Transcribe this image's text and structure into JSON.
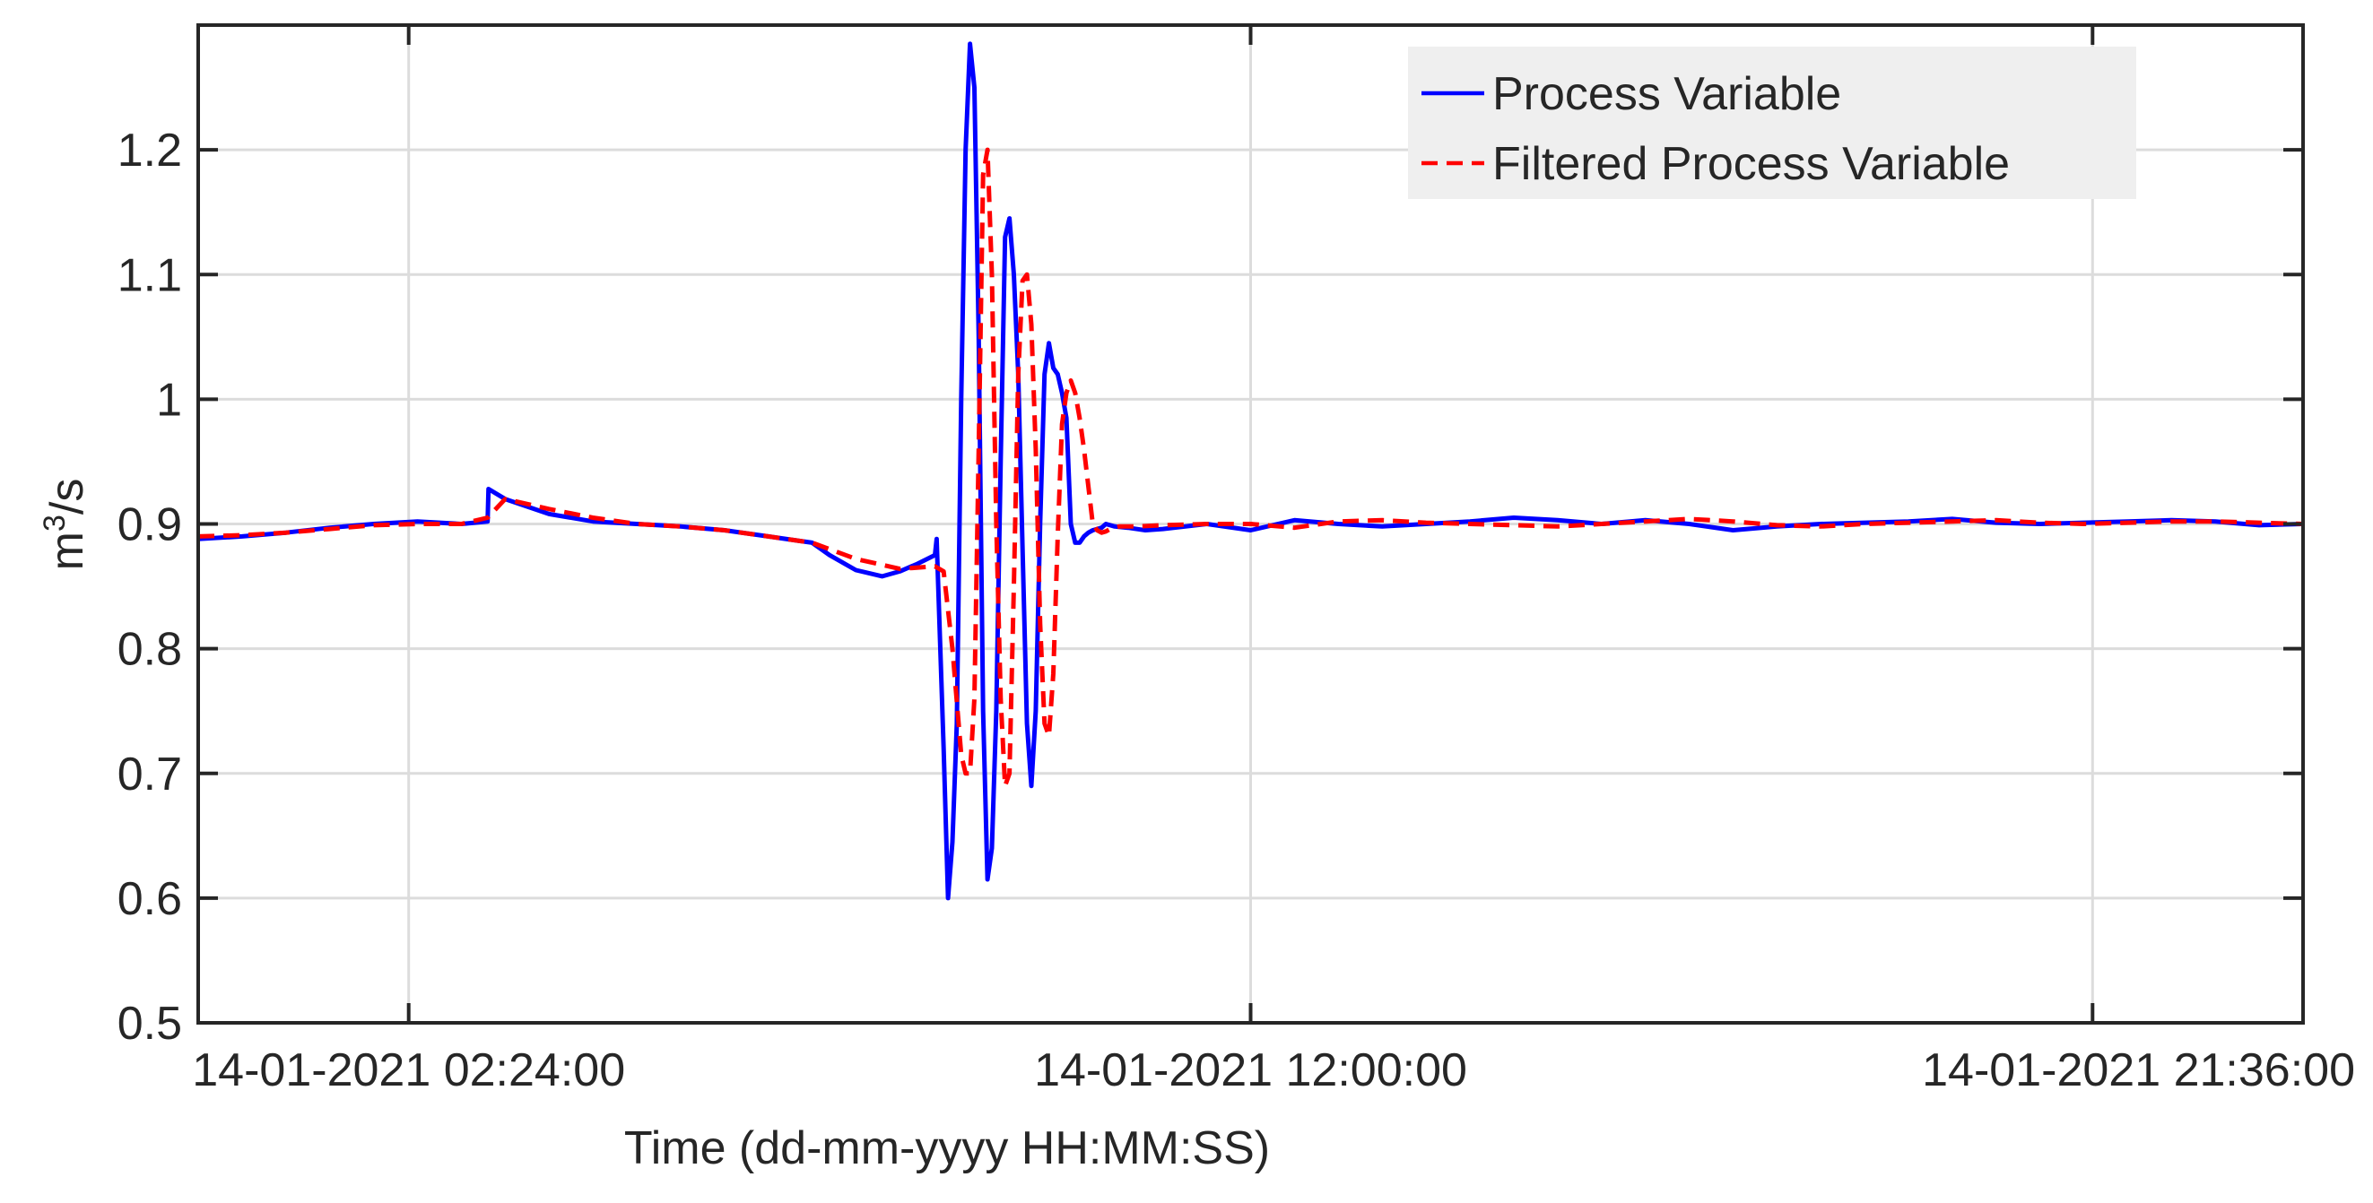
{
  "chart_data": {
    "type": "line",
    "title": "",
    "xlabel": "Time (dd-mm-yyyy HH:MM:SS)",
    "ylabel": "m³/s",
    "ylabel_parts": {
      "base": "m",
      "sup": "3",
      "rest": "/s"
    },
    "xlim": [
      "14-01-2021 00:00:00",
      "15-01-2021 00:00:00"
    ],
    "ylim": [
      0.5,
      1.3
    ],
    "grid": true,
    "legend_position": "top-right",
    "x_ticks": [
      {
        "hour": 2.4,
        "label": "14-01-2021 02:24:00"
      },
      {
        "hour": 12.0,
        "label": "14-01-2021 12:00:00"
      },
      {
        "hour": 21.6,
        "label": "14-01-2021 21:36:00"
      }
    ],
    "y_ticks": [
      {
        "value": 0.5,
        "label": "0.5"
      },
      {
        "value": 0.6,
        "label": "0.6"
      },
      {
        "value": 0.7,
        "label": "0.7"
      },
      {
        "value": 0.8,
        "label": "0.8"
      },
      {
        "value": 0.9,
        "label": "0.9"
      },
      {
        "value": 1.0,
        "label": "1"
      },
      {
        "value": 1.1,
        "label": "1.1"
      },
      {
        "value": 1.2,
        "label": "1.2"
      }
    ],
    "series": [
      {
        "name": "Process Variable",
        "color": "#0000ff",
        "style": "solid",
        "x_hours": [
          0,
          0.5,
          1,
          1.5,
          2,
          2.5,
          3,
          3.3,
          3.31,
          3.5,
          4,
          4.5,
          5,
          5.5,
          6,
          6.5,
          7,
          7.2,
          7.5,
          7.8,
          8.0,
          8.2,
          8.4,
          8.42,
          8.5,
          8.55,
          8.6,
          8.65,
          8.7,
          8.75,
          8.8,
          8.85,
          8.9,
          8.95,
          9.0,
          9.05,
          9.1,
          9.15,
          9.2,
          9.25,
          9.3,
          9.35,
          9.4,
          9.45,
          9.5,
          9.55,
          9.6,
          9.65,
          9.7,
          9.75,
          9.8,
          9.85,
          9.9,
          9.95,
          10.0,
          10.05,
          10.1,
          10.15,
          10.2,
          10.25,
          10.3,
          10.35,
          10.45,
          10.6,
          10.8,
          11.0,
          11.5,
          12.0,
          12.5,
          13.0,
          13.5,
          14.0,
          14.5,
          15.0,
          15.5,
          16.0,
          16.5,
          17.0,
          17.5,
          18.0,
          18.5,
          19.0,
          19.5,
          20.0,
          20.5,
          21.0,
          21.5,
          22.0,
          22.5,
          23.0,
          23.5,
          24.0
        ],
        "values": [
          0.888,
          0.89,
          0.893,
          0.897,
          0.9,
          0.902,
          0.9,
          0.902,
          0.928,
          0.92,
          0.908,
          0.902,
          0.9,
          0.898,
          0.895,
          0.89,
          0.885,
          0.875,
          0.863,
          0.858,
          0.862,
          0.868,
          0.875,
          0.888,
          0.72,
          0.6,
          0.645,
          0.74,
          1.0,
          1.2,
          1.285,
          1.25,
          1.05,
          0.75,
          0.615,
          0.64,
          0.75,
          0.95,
          1.13,
          1.145,
          1.1,
          1.02,
          0.88,
          0.74,
          0.69,
          0.75,
          0.9,
          1.02,
          1.045,
          1.025,
          1.02,
          1.005,
          0.985,
          0.9,
          0.885,
          0.885,
          0.89,
          0.893,
          0.895,
          0.896,
          0.897,
          0.9,
          0.898,
          0.897,
          0.895,
          0.896,
          0.9,
          0.895,
          0.903,
          0.9,
          0.898,
          0.9,
          0.902,
          0.905,
          0.903,
          0.9,
          0.903,
          0.9,
          0.895,
          0.898,
          0.9,
          0.901,
          0.902,
          0.904,
          0.901,
          0.9,
          0.901,
          0.902,
          0.903,
          0.902,
          0.899,
          0.9
        ]
      },
      {
        "name": "Filtered Process Variable",
        "color": "#ff0000",
        "style": "dashed",
        "x_hours": [
          0,
          0.5,
          1,
          1.5,
          2,
          2.5,
          3,
          3.3,
          3.5,
          4,
          4.5,
          5,
          5.5,
          6,
          6.5,
          7,
          7.5,
          8.0,
          8.4,
          8.5,
          8.6,
          8.7,
          8.75,
          8.8,
          8.85,
          8.9,
          8.95,
          9.0,
          9.05,
          9.1,
          9.15,
          9.2,
          9.25,
          9.3,
          9.35,
          9.4,
          9.45,
          9.5,
          9.55,
          9.6,
          9.65,
          9.7,
          9.75,
          9.8,
          9.85,
          9.9,
          9.95,
          10.0,
          10.05,
          10.1,
          10.15,
          10.2,
          10.25,
          10.3,
          10.35,
          10.4,
          10.5,
          10.7,
          11.0,
          11.5,
          12.0,
          12.5,
          13.0,
          13.5,
          14.0,
          14.5,
          15.0,
          15.5,
          16.0,
          16.5,
          17.0,
          17.5,
          18.0,
          18.5,
          19.0,
          19.5,
          20.0,
          20.5,
          21.0,
          21.5,
          22.0,
          22.5,
          23.0,
          23.5,
          24.0
        ],
        "values": [
          0.89,
          0.891,
          0.893,
          0.896,
          0.899,
          0.9,
          0.9,
          0.905,
          0.92,
          0.912,
          0.905,
          0.9,
          0.898,
          0.895,
          0.89,
          0.885,
          0.872,
          0.864,
          0.866,
          0.862,
          0.8,
          0.715,
          0.7,
          0.7,
          0.76,
          0.96,
          1.18,
          1.2,
          1.1,
          0.9,
          0.76,
          0.69,
          0.7,
          0.85,
          1.02,
          1.095,
          1.1,
          1.06,
          0.96,
          0.82,
          0.74,
          0.73,
          0.78,
          0.89,
          0.98,
          1.005,
          1.015,
          1.005,
          0.985,
          0.96,
          0.93,
          0.9,
          0.895,
          0.893,
          0.894,
          0.896,
          0.898,
          0.898,
          0.899,
          0.9,
          0.9,
          0.897,
          0.902,
          0.903,
          0.901,
          0.9,
          0.899,
          0.898,
          0.9,
          0.902,
          0.904,
          0.902,
          0.899,
          0.898,
          0.9,
          0.901,
          0.902,
          0.903,
          0.901,
          0.9,
          0.901,
          0.902,
          0.902,
          0.901,
          0.9
        ]
      }
    ]
  }
}
